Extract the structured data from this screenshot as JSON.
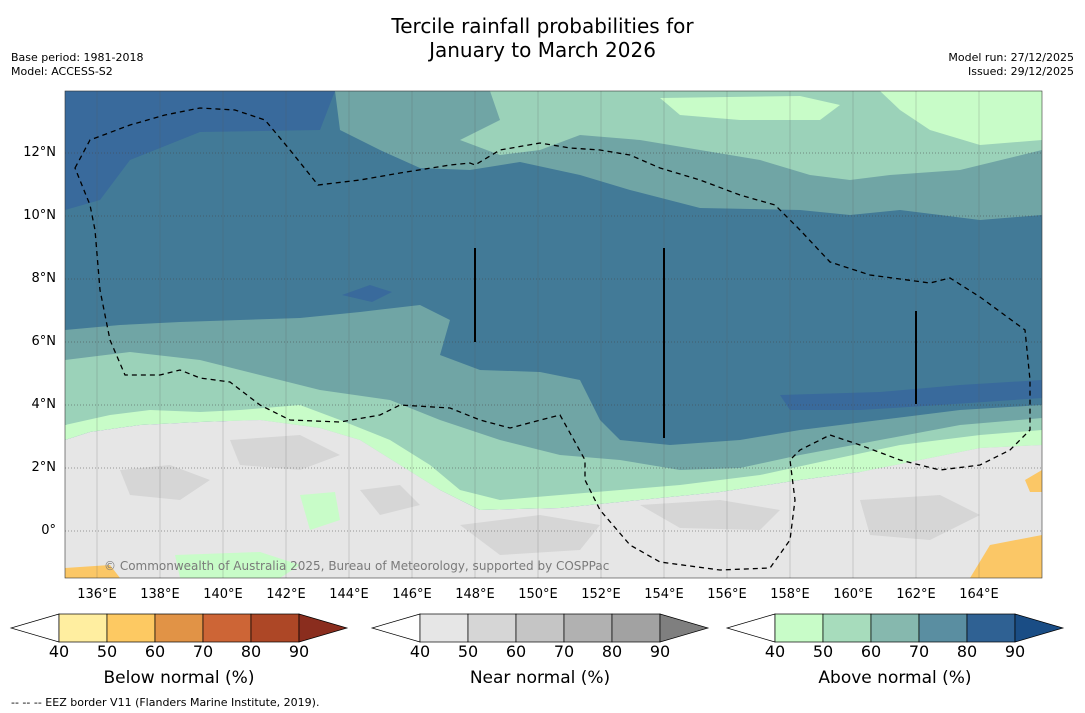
{
  "title": {
    "line1": "Tercile rainfall probabilities for",
    "line2": "January to March 2026"
  },
  "meta_left": {
    "base_period": "Base period: 1981-2018",
    "model": "Model: ACCESS-S2"
  },
  "meta_right": {
    "model_run": "Model run: 27/12/2025",
    "issued": "Issued: 29/12/2025"
  },
  "map": {
    "lat_labels": [
      "12°N",
      "10°N",
      "8°N",
      "6°N",
      "4°N",
      "2°N",
      "0°"
    ],
    "lon_labels": [
      "136°E",
      "138°E",
      "140°E",
      "142°E",
      "144°E",
      "146°E",
      "148°E",
      "150°E",
      "152°E",
      "154°E",
      "156°E",
      "158°E",
      "160°E",
      "162°E",
      "164°E"
    ],
    "copyright": "© Commonwealth of Australia 2025, Bureau of Meteorology, supported by COSPPac",
    "category_colors": {
      "above_95": "#396a9c",
      "above_85": "#427a97",
      "above_75": "#70a5a5",
      "above_65": "#9bd2b9",
      "above_55": "#c8fcc8",
      "near_45": "#e6e6e6",
      "near_55": "#d6d6d6",
      "below_45": "#fbc766"
    }
  },
  "colorbars": [
    {
      "id": "below",
      "title": "Below normal (%)",
      "ticks": [
        "40",
        "50",
        "60",
        "70",
        "80",
        "90"
      ],
      "colors": [
        "#ffffff",
        "#ffeea0",
        "#fdc962",
        "#e19346",
        "#cd6536",
        "#ad4726",
        "#8a2d1e"
      ]
    },
    {
      "id": "near",
      "title": "Near normal (%)",
      "ticks": [
        "40",
        "50",
        "60",
        "70",
        "80",
        "90"
      ],
      "colors": [
        "#ffffff",
        "#e6e6e6",
        "#d6d6d6",
        "#c5c5c5",
        "#b1b1b1",
        "#a2a2a2",
        "#7f7f7f"
      ]
    },
    {
      "id": "above",
      "title": "Above normal (%)",
      "ticks": [
        "40",
        "50",
        "60",
        "70",
        "80",
        "90"
      ],
      "colors": [
        "#ffffff",
        "#c8fcc8",
        "#a7dcbc",
        "#86b8ae",
        "#5a8ea1",
        "#2f6193",
        "#1a4d85"
      ]
    }
  ],
  "footnote": "--  --  -- EEZ border V11 (Flanders Marine Institute, 2019)."
}
